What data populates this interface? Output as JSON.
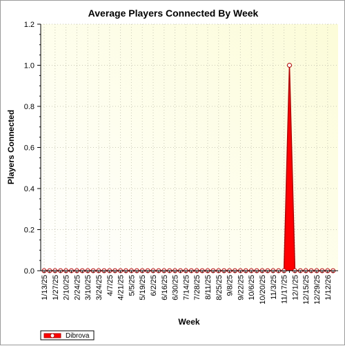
{
  "chart_data": {
    "type": "area",
    "title": "Average Players Connected By Week",
    "xlabel": "Week",
    "ylabel": "Players Connected",
    "ylim": [
      0,
      1.2
    ],
    "yticks": [
      0.0,
      0.2,
      0.4,
      0.6,
      0.8,
      1.0,
      1.2
    ],
    "ytick_labels": [
      "0.0",
      "0.2",
      "0.4",
      "0.6",
      "0.8",
      "1.0",
      "1.2"
    ],
    "grid": true,
    "legend_position": "bottom-left",
    "x_label_dates": [
      "1/13/25",
      "1/27/25",
      "2/10/25",
      "2/24/25",
      "3/10/25",
      "3/24/25",
      "4/7/25",
      "4/21/25",
      "5/5/25",
      "5/19/25",
      "6/2/25",
      "6/16/25",
      "6/30/25",
      "7/14/25",
      "7/28/25",
      "8/11/25",
      "8/25/25",
      "9/8/25",
      "9/22/25",
      "10/6/25",
      "10/20/25",
      "11/3/25",
      "11/17/25",
      "12/1/25",
      "12/15/25",
      "12/29/25",
      "1/12/26"
    ],
    "x": [
      "1/13/25",
      "1/20/25",
      "1/27/25",
      "2/3/25",
      "2/10/25",
      "2/17/25",
      "2/24/25",
      "3/3/25",
      "3/10/25",
      "3/17/25",
      "3/24/25",
      "3/31/25",
      "4/7/25",
      "4/14/25",
      "4/21/25",
      "4/28/25",
      "5/5/25",
      "5/12/25",
      "5/19/25",
      "5/26/25",
      "6/2/25",
      "6/9/25",
      "6/16/25",
      "6/23/25",
      "6/30/25",
      "7/7/25",
      "7/14/25",
      "7/21/25",
      "7/28/25",
      "8/4/25",
      "8/11/25",
      "8/18/25",
      "8/25/25",
      "9/1/25",
      "9/8/25",
      "9/15/25",
      "9/22/25",
      "9/29/25",
      "10/6/25",
      "10/13/25",
      "10/20/25",
      "10/27/25",
      "11/3/25",
      "11/10/25",
      "11/17/25",
      "11/24/25",
      "12/1/25",
      "12/8/25",
      "12/15/25",
      "12/22/25",
      "12/29/25",
      "1/5/26",
      "1/12/26",
      "1/19/26"
    ],
    "series": [
      {
        "name": "Dibrova",
        "color": "#ff0000",
        "values": [
          0,
          0,
          0,
          0,
          0,
          0,
          0,
          0,
          0,
          0,
          0,
          0,
          0,
          0,
          0,
          0,
          0,
          0,
          0,
          0,
          0,
          0,
          0,
          0,
          0,
          0,
          0,
          0,
          0,
          0,
          0,
          0,
          0,
          0,
          0,
          0,
          0,
          0,
          0,
          0,
          0,
          0,
          0,
          0,
          0,
          1.0,
          0,
          0,
          0,
          0,
          0,
          0,
          0,
          0
        ]
      }
    ]
  },
  "colors": {
    "plot_bg_top": "#fdfde2",
    "plot_bg_bottom": "#ffffff",
    "grid": "#c8c8b4",
    "series_fill": "#ff0000",
    "series_line": "#b00000"
  }
}
